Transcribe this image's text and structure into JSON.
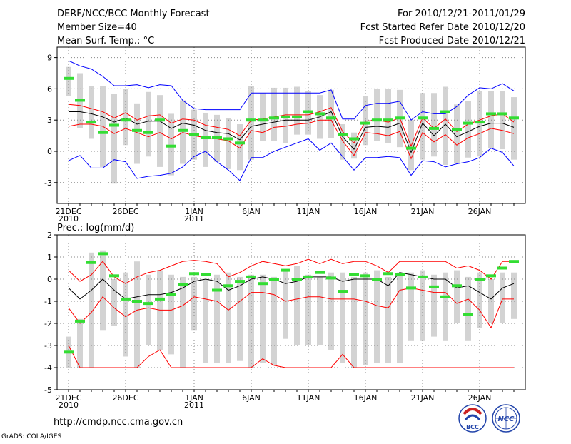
{
  "header": {
    "left": [
      "DERF/NCC/BCC Monthly Forecast",
      "Member Size=40",
      "Mean Surf. Temp.: °C"
    ],
    "right": [
      "For 2010/12/21-2011/01/29",
      "Fcst Started Refer Date 2010/12/20",
      "Fcst Produced Date 2010/12/21"
    ]
  },
  "footer": {
    "url": "http://cmdp.ncc.cma.gov.cn",
    "credit": "GrADS: COLA/IGES",
    "logo_bcc": "BCC",
    "logo_ncc": "NCC"
  },
  "colors": {
    "bar": "#d3d3d3",
    "mean": "#000000",
    "spread": "#ff0000",
    "extreme": "#0000ff",
    "median": "#33dd33",
    "grid": "#888888"
  },
  "chart_data": [
    {
      "type": "line",
      "title": "Mean Surf. Temp.: °C",
      "n_days": 40,
      "ylim": [
        -5,
        10
      ],
      "yticks": [
        -3,
        0,
        3,
        6,
        9
      ],
      "xtick_labels": [
        {
          "day": 0,
          "lines": [
            "21DEC",
            "2010"
          ]
        },
        {
          "day": 5,
          "lines": [
            "26DEC"
          ]
        },
        {
          "day": 11,
          "lines": [
            "1JAN",
            "2011"
          ]
        },
        {
          "day": 16,
          "lines": [
            "6JAN"
          ]
        },
        {
          "day": 21,
          "lines": [
            "11JAN"
          ]
        },
        {
          "day": 26,
          "lines": [
            "16JAN"
          ]
        },
        {
          "day": 31,
          "lines": [
            "21JAN"
          ]
        },
        {
          "day": 36,
          "lines": [
            "26JAN"
          ]
        }
      ],
      "series": [
        {
          "name": "mean",
          "values": [
            3.8,
            3.8,
            3.6,
            3.3,
            2.8,
            3.2,
            2.6,
            2.9,
            2.9,
            2.2,
            2.7,
            2.5,
            2.0,
            1.8,
            1.7,
            1.1,
            2.4,
            2.6,
            2.8,
            3.0,
            3.0,
            3.0,
            3.3,
            3.8,
            1.4,
            0.2,
            2.3,
            2.4,
            2.3,
            2.7,
            -0.1,
            2.7,
            1.5,
            2.6,
            1.4,
            1.9,
            2.4,
            2.7,
            2.7,
            2.3
          ]
        },
        {
          "name": "upper",
          "values": [
            4.5,
            4.4,
            4.1,
            3.8,
            3.2,
            3.7,
            3.0,
            3.4,
            3.5,
            2.7,
            3.1,
            3.0,
            2.5,
            2.3,
            2.1,
            1.5,
            3.0,
            3.1,
            3.3,
            3.5,
            3.5,
            3.5,
            3.8,
            4.2,
            1.9,
            0.8,
            2.9,
            3.0,
            2.8,
            3.2,
            0.5,
            3.2,
            2.2,
            3.1,
            1.9,
            2.6,
            3.0,
            3.4,
            3.6,
            2.8
          ]
        },
        {
          "name": "lower",
          "values": [
            2.4,
            2.6,
            2.6,
            2.4,
            1.7,
            2.2,
            1.8,
            1.4,
            1.8,
            1.2,
            1.8,
            1.5,
            1.3,
            1.2,
            1.0,
            0.3,
            2.0,
            1.8,
            2.3,
            2.4,
            2.6,
            2.7,
            3.0,
            3.0,
            1.0,
            -0.4,
            1.8,
            1.7,
            1.5,
            1.9,
            -0.7,
            1.8,
            0.9,
            1.6,
            0.6,
            1.3,
            1.7,
            2.2,
            2.0,
            1.7
          ]
        },
        {
          "name": "max",
          "values": [
            8.7,
            8.2,
            7.9,
            7.2,
            6.3,
            6.3,
            6.4,
            6.1,
            6.4,
            6.3,
            4.9,
            4.1,
            4.0,
            4.0,
            4.0,
            4.0,
            5.6,
            5.6,
            5.6,
            5.6,
            5.6,
            5.6,
            5.6,
            5.9,
            3.1,
            3.1,
            4.4,
            4.6,
            4.6,
            4.8,
            3.0,
            3.8,
            3.6,
            3.6,
            4.3,
            5.4,
            6.1,
            6.0,
            6.5,
            5.8
          ]
        },
        {
          "name": "min",
          "values": [
            -0.9,
            -0.4,
            -1.6,
            -1.6,
            -0.8,
            -1.0,
            -2.6,
            -2.4,
            -2.3,
            -2.1,
            -1.5,
            -0.5,
            0.0,
            -1.0,
            -1.8,
            -2.8,
            -0.6,
            -0.6,
            0.0,
            0.4,
            0.8,
            1.2,
            0.1,
            0.8,
            -0.5,
            -1.8,
            -0.6,
            -0.6,
            -0.5,
            -0.6,
            -2.3,
            -0.9,
            -1.0,
            -1.5,
            -1.2,
            -1.0,
            -0.6,
            0.3,
            -0.1,
            -1.4
          ]
        },
        {
          "name": "bar_top",
          "values": [
            8.1,
            7.5,
            6.3,
            6.3,
            5.5,
            6.0,
            4.6,
            5.7,
            5.4,
            3.6,
            4.9,
            4.0,
            3.7,
            3.5,
            3.2,
            2.6,
            6.3,
            5.6,
            6.1,
            6.1,
            6.2,
            5.8,
            5.4,
            5.9,
            2.6,
            1.8,
            5.3,
            6.0,
            6.0,
            5.9,
            3.0,
            5.6,
            5.6,
            6.2,
            4.5,
            4.8,
            5.8,
            5.8,
            5.8,
            5.2
          ]
        },
        {
          "name": "bar_bottom",
          "values": [
            5.3,
            2.2,
            1.2,
            -1.5,
            -3.1,
            0.6,
            -1.2,
            -0.5,
            -1.5,
            -2.3,
            -1.2,
            -0.8,
            -1.5,
            -1.0,
            -1.7,
            -1.8,
            -0.8,
            1.0,
            1.0,
            0.8,
            1.6,
            1.6,
            1.2,
            1.3,
            -0.8,
            -0.7,
            0.6,
            1.0,
            0.8,
            0.4,
            -1.8,
            -0.8,
            -0.5,
            -1.3,
            -1.1,
            -0.6,
            -0.5,
            0.3,
            0.2,
            -0.8
          ]
        },
        {
          "name": "median",
          "values": [
            7.0,
            4.9,
            2.8,
            1.8,
            2.5,
            3.0,
            2.0,
            1.8,
            3.0,
            0.5,
            2.0,
            1.6,
            1.3,
            1.3,
            1.2,
            0.8,
            3.0,
            3.0,
            3.2,
            3.3,
            3.3,
            3.8,
            3.6,
            3.2,
            1.6,
            1.2,
            2.7,
            3.0,
            3.0,
            3.2,
            0.3,
            3.2,
            2.2,
            3.8,
            2.1,
            2.7,
            2.8,
            3.6,
            3.6,
            3.2
          ]
        }
      ]
    },
    {
      "type": "line",
      "title": "Prec.: log(mm/d)",
      "n_days": 40,
      "ylim": [
        -5,
        2
      ],
      "yticks": [
        -5,
        -4,
        -3,
        -2,
        -1,
        0,
        1,
        2
      ],
      "xtick_labels": [
        {
          "day": 0,
          "lines": [
            "21DEC",
            "2010"
          ]
        },
        {
          "day": 5,
          "lines": [
            "26DEC"
          ]
        },
        {
          "day": 11,
          "lines": [
            "1JAN",
            "2011"
          ]
        },
        {
          "day": 16,
          "lines": [
            "6JAN"
          ]
        },
        {
          "day": 21,
          "lines": [
            "11JAN"
          ]
        },
        {
          "day": 26,
          "lines": [
            "16JAN"
          ]
        },
        {
          "day": 31,
          "lines": [
            "21JAN"
          ]
        },
        {
          "day": 36,
          "lines": [
            "26JAN"
          ]
        }
      ],
      "series": [
        {
          "name": "mean",
          "values": [
            -0.4,
            -0.9,
            -0.5,
            0.0,
            -0.5,
            -0.9,
            -0.8,
            -0.7,
            -0.7,
            -0.6,
            -0.4,
            -0.1,
            0.0,
            -0.1,
            -0.5,
            -0.3,
            0.0,
            0.1,
            0.0,
            -0.2,
            -0.1,
            0.1,
            0.1,
            0.1,
            -0.1,
            0.0,
            0.0,
            0.0,
            -0.3,
            0.3,
            0.2,
            0.1,
            0.0,
            0.0,
            -0.4,
            -0.3,
            -0.6,
            -0.9,
            -0.4,
            -0.2
          ]
        },
        {
          "name": "upper",
          "values": [
            0.4,
            -0.1,
            0.2,
            0.8,
            0.1,
            -0.2,
            0.1,
            0.3,
            0.4,
            0.6,
            0.8,
            0.85,
            0.8,
            0.7,
            0.1,
            0.3,
            0.6,
            0.8,
            0.7,
            0.6,
            0.7,
            0.9,
            0.7,
            0.9,
            0.7,
            0.8,
            0.8,
            0.6,
            0.3,
            0.8,
            0.8,
            0.8,
            0.8,
            0.8,
            0.5,
            0.6,
            0.4,
            0.0,
            0.8,
            0.8
          ]
        },
        {
          "name": "lower",
          "values": [
            -1.3,
            -2.0,
            -1.5,
            -0.8,
            -1.3,
            -1.7,
            -1.4,
            -1.3,
            -1.4,
            -1.4,
            -1.2,
            -0.8,
            -0.9,
            -1.0,
            -1.4,
            -1.0,
            -0.6,
            -0.6,
            -0.7,
            -1.0,
            -0.9,
            -0.8,
            -0.8,
            -0.9,
            -0.9,
            -0.9,
            -1.0,
            -1.2,
            -1.3,
            -0.5,
            -0.4,
            -0.5,
            -0.6,
            -0.6,
            -1.1,
            -0.9,
            -1.4,
            -2.2,
            -0.9,
            -0.9
          ]
        },
        {
          "name": "min_upper",
          "values": [
            -3.0,
            -4.0,
            -4.0,
            -4.0,
            -4.0,
            -4.0,
            -4.0,
            -3.5,
            -3.2,
            -4.0,
            -4.0,
            -4.0,
            -4.0,
            -4.0,
            -4.0,
            -4.0,
            -4.0,
            -3.6,
            -3.9,
            -4.0,
            -4.0,
            -4.0,
            -4.0,
            -4.0,
            -3.4,
            -4.0,
            -4.0,
            -4.0,
            -4.0,
            -4.0,
            -4.0,
            -4.0,
            -4.0,
            -4.0,
            -4.0,
            -4.0,
            -4.0,
            -4.0,
            -4.0,
            -4.0
          ]
        },
        {
          "name": "bar_top",
          "values": [
            -2.6,
            -1.8,
            1.2,
            1.3,
            0.0,
            0.3,
            0.8,
            0.2,
            0.4,
            0.2,
            0.1,
            0.1,
            0.0,
            0.2,
            0.3,
            0.1,
            0.2,
            0.2,
            0.1,
            0.4,
            0.6,
            0.2,
            0.1,
            0.3,
            0.3,
            0.1,
            0.3,
            0.4,
            0.1,
            0.3,
            0.3,
            0.4,
            0.2,
            0.3,
            0.4,
            0.1,
            0.3,
            0.0,
            0.3,
            0.3
          ]
        },
        {
          "name": "bar_bottom",
          "values": [
            -4.0,
            -4.0,
            -4.0,
            -2.3,
            -2.1,
            -3.5,
            -4.0,
            -3.0,
            -3.2,
            -3.4,
            -4.0,
            -2.3,
            -3.8,
            -3.8,
            -3.8,
            -3.7,
            -4.0,
            -3.8,
            -3.9,
            -2.7,
            -3.0,
            -3.0,
            -3.0,
            -3.2,
            -3.8,
            -4.0,
            -3.9,
            -3.8,
            -3.8,
            -3.8,
            -2.8,
            -2.8,
            -2.6,
            -2.8,
            -2.0,
            -2.8,
            -2.2,
            -2.0,
            -2.0,
            -1.8
          ]
        },
        {
          "name": "median",
          "values": [
            -3.3,
            -1.9,
            0.75,
            1.15,
            0.15,
            -0.9,
            -1.0,
            -1.1,
            -0.9,
            -0.7,
            -0.25,
            0.25,
            0.2,
            -0.5,
            -0.3,
            -0.1,
            0.1,
            -0.2,
            0.0,
            0.4,
            0.0,
            0.1,
            0.3,
            0.05,
            -0.55,
            0.2,
            0.15,
            0.0,
            0.25,
            0.2,
            -0.4,
            0.1,
            -0.35,
            -0.8,
            -0.3,
            -1.6,
            0.0,
            0.15,
            0.5,
            0.8
          ]
        }
      ]
    }
  ]
}
